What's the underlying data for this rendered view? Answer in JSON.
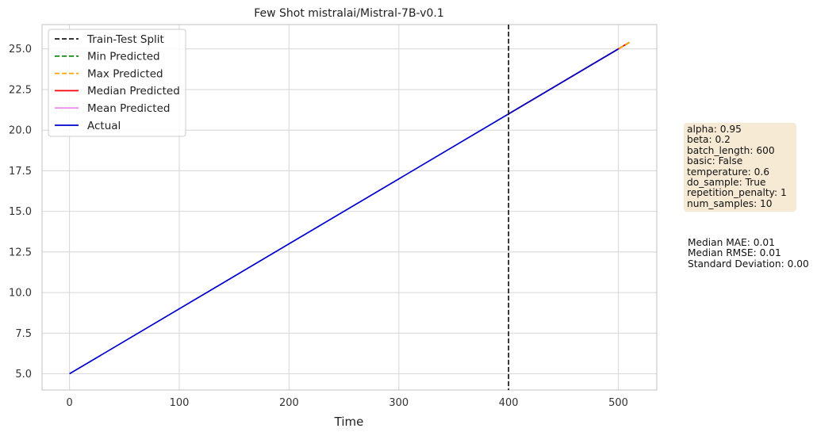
{
  "chart_data": {
    "type": "line",
    "title": "Few Shot mistralai/Mistral-7B-v0.1",
    "xlabel": "Time",
    "ylabel": "",
    "xlim": [
      -25,
      535
    ],
    "ylim": [
      4.0,
      26.5
    ],
    "xticks": [
      0,
      100,
      200,
      300,
      400,
      500
    ],
    "yticks": [
      5.0,
      7.5,
      10.0,
      12.5,
      15.0,
      17.5,
      20.0,
      22.5,
      25.0
    ],
    "ytick_labels": [
      "5.0",
      "7.5",
      "10.0",
      "12.5",
      "15.0",
      "17.5",
      "20.0",
      "22.5",
      "25.0"
    ],
    "grid": true,
    "legend_position": "top-left",
    "split": {
      "name": "Train-Test Split",
      "x": 400,
      "color": "#1a1a1a",
      "style": "dashed"
    },
    "series": [
      {
        "name": "Min Predicted",
        "color": "#008000",
        "style": "dashed",
        "x": [
          400,
          510
        ],
        "y": [
          21.0,
          25.4
        ]
      },
      {
        "name": "Max Predicted",
        "color": "#ffa500",
        "style": "dashed",
        "x": [
          400,
          510
        ],
        "y": [
          21.0,
          25.4
        ]
      },
      {
        "name": "Median Predicted",
        "color": "#ff0000",
        "style": "solid",
        "x": [
          400,
          510
        ],
        "y": [
          21.0,
          25.4
        ]
      },
      {
        "name": "Mean Predicted",
        "color": "#ee82ee",
        "style": "solid",
        "x": [
          400,
          510
        ],
        "y": [
          21.0,
          25.4
        ]
      },
      {
        "name": "Actual",
        "color": "#0000cd",
        "style": "solid",
        "x": [
          0,
          500
        ],
        "y": [
          5.0,
          25.0
        ]
      }
    ]
  },
  "params": [
    "alpha: 0.95",
    "beta: 0.2",
    "batch_length: 600",
    "basic: False",
    "temperature: 0.6",
    "do_sample: True",
    "repetition_penalty: 1",
    "num_samples: 10"
  ],
  "metrics": [
    "Median MAE: 0.01",
    "Median RMSE: 0.01",
    "Standard Deviation: 0.00"
  ]
}
